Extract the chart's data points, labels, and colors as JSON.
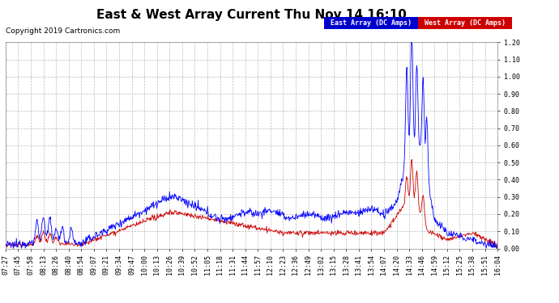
{
  "title": "East & West Array Current Thu Nov 14 16:10",
  "copyright": "Copyright 2019 Cartronics.com",
  "legend_east": "East Array (DC Amps)",
  "legend_west": "West Array (DC Amps)",
  "legend_east_bg": "#0000cc",
  "legend_west_bg": "#cc0000",
  "legend_text_color": "#ffffff",
  "ylim": [
    0.0,
    1.2
  ],
  "yticks": [
    0.0,
    0.1,
    0.2,
    0.3,
    0.4,
    0.5,
    0.6,
    0.7,
    0.8,
    0.9,
    1.0,
    1.1,
    1.2
  ],
  "east_color": "#0000ff",
  "west_color": "#cc0000",
  "background_color": "#ffffff",
  "grid_color": "#bbbbbb",
  "title_fontsize": 11,
  "copyright_fontsize": 6.5,
  "tick_label_fontsize": 6,
  "x_labels": [
    "07:27",
    "07:45",
    "07:58",
    "08:13",
    "08:26",
    "08:40",
    "08:54",
    "09:07",
    "09:21",
    "09:34",
    "09:47",
    "10:00",
    "10:13",
    "10:26",
    "10:39",
    "10:52",
    "11:05",
    "11:18",
    "11:31",
    "11:44",
    "11:57",
    "12:10",
    "12:23",
    "12:36",
    "12:49",
    "13:02",
    "13:15",
    "13:28",
    "13:41",
    "13:54",
    "14:07",
    "14:20",
    "14:33",
    "14:46",
    "14:59",
    "15:12",
    "15:25",
    "15:38",
    "15:51",
    "16:04"
  ]
}
